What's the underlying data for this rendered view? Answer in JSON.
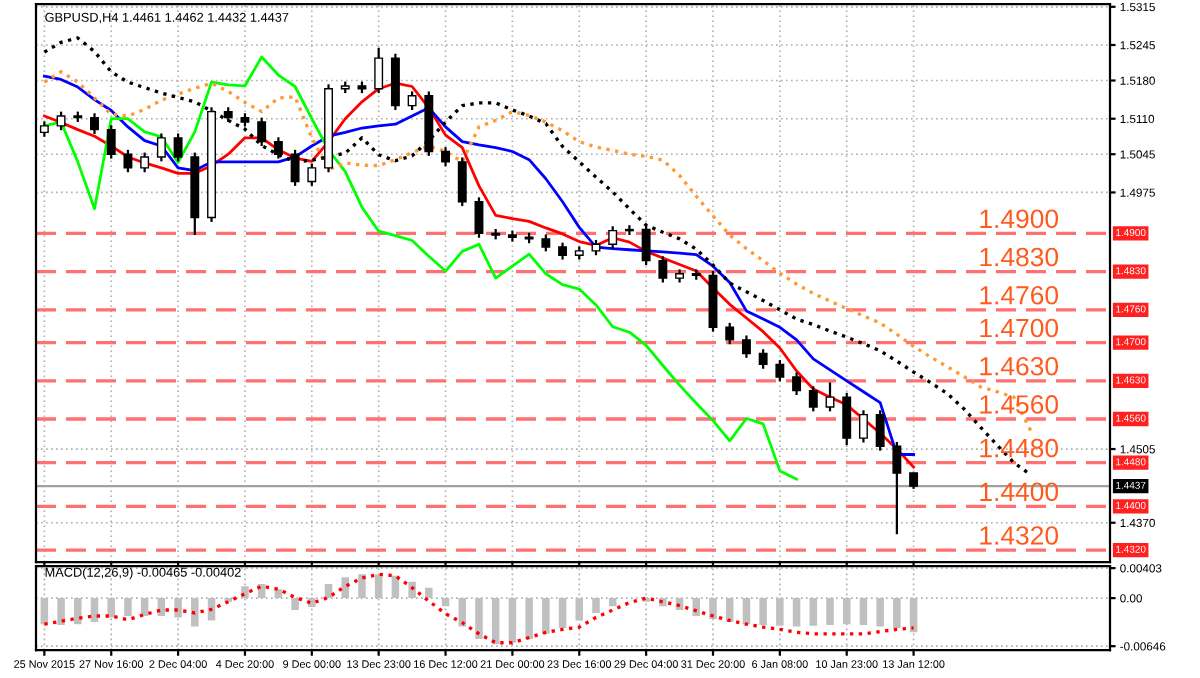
{
  "chart_data": [
    {
      "type": "line",
      "title": "GBPUSD,H4 1.4461 1.4462 1.4432 1.4437",
      "categories": [
        null,
        null,
        null,
        null,
        null,
        null,
        null,
        null,
        null,
        null,
        null,
        null,
        null,
        null,
        null,
        null,
        null,
        null,
        null,
        null,
        null,
        null,
        null,
        null,
        null,
        null,
        null,
        null,
        null,
        null,
        null,
        null,
        null,
        null,
        null,
        null,
        null,
        null,
        null,
        null,
        null,
        null,
        null,
        null,
        null,
        null,
        null,
        null,
        null,
        null,
        null,
        null,
        null,
        null,
        null,
        null,
        null,
        null,
        null,
        null,
        null,
        null,
        null,
        null
      ],
      "ylim": [
        1.4298,
        1.532
      ],
      "tick_labels": "y",
      "grid": true,
      "yticks": [
        {
          "value": 1.5315,
          "label": "1.5315"
        },
        {
          "value": 1.5245,
          "label": "1.5245"
        },
        {
          "value": 1.518,
          "label": "1.5180"
        },
        {
          "value": 1.511,
          "label": "1.5110"
        },
        {
          "value": 1.5045,
          "label": "1.5045"
        },
        {
          "value": 1.4975,
          "label": "1.4975"
        },
        {
          "value": 1.4505,
          "label": "1.4505"
        },
        {
          "value": 1.437,
          "label": "1.4370"
        }
      ],
      "series": [
        {
          "type": "candlestick",
          "color": "#000000",
          "ohlc": [
            [
              1.5085,
              1.5105,
              1.5077,
              1.5097
            ],
            [
              1.5097,
              1.5123,
              1.5089,
              1.5115
            ],
            [
              1.5115,
              1.5123,
              1.5104,
              1.5112
            ],
            [
              1.5112,
              1.512,
              1.5082,
              1.509
            ],
            [
              1.509,
              1.5098,
              1.5037,
              1.5045
            ],
            [
              1.5045,
              1.5053,
              1.5012,
              1.502
            ],
            [
              1.502,
              1.5048,
              1.5012,
              1.504
            ],
            [
              1.504,
              1.5083,
              1.5032,
              1.5075
            ],
            [
              1.5075,
              1.5083,
              1.5032,
              1.504
            ],
            [
              1.504,
              1.5048,
              1.4897,
              1.4929
            ],
            [
              1.4929,
              1.5131,
              1.4921,
              1.5123
            ],
            [
              1.5123,
              1.5131,
              1.5104,
              1.5112
            ],
            [
              1.5112,
              1.512,
              1.5096,
              1.5104
            ],
            [
              1.5104,
              1.5112,
              1.506,
              1.5068
            ],
            [
              1.5068,
              1.5076,
              1.5037,
              1.5045
            ],
            [
              1.5045,
              1.5053,
              1.4987,
              1.4995
            ],
            [
              1.4995,
              1.5028,
              1.4987,
              1.502
            ],
            [
              1.502,
              1.5173,
              1.5012,
              1.5165
            ],
            [
              1.5165,
              1.5178,
              1.5157,
              1.517
            ],
            [
              1.517,
              1.5178,
              1.5157,
              1.5165
            ],
            [
              1.5165,
              1.524,
              1.5157,
              1.5221
            ],
            [
              1.5221,
              1.5229,
              1.5126,
              1.5134
            ],
            [
              1.5134,
              1.516,
              1.5126,
              1.5152
            ],
            [
              1.5152,
              1.516,
              1.5042,
              1.505
            ],
            [
              1.505,
              1.5058,
              1.5023,
              1.5031
            ],
            [
              1.5031,
              1.5039,
              1.495,
              1.4958
            ],
            [
              1.4958,
              1.4966,
              1.4892,
              1.49
            ],
            [
              1.49,
              1.4908,
              1.4889,
              1.4897
            ],
            [
              1.4897,
              1.4905,
              1.4885,
              1.4893
            ],
            [
              1.4893,
              1.4901,
              1.4882,
              1.489
            ],
            [
              1.489,
              1.4898,
              1.4867,
              1.4875
            ],
            [
              1.4875,
              1.4883,
              1.4852,
              1.486
            ],
            [
              1.486,
              1.4876,
              1.4852,
              1.4868
            ],
            [
              1.4868,
              1.4888,
              1.486,
              1.488
            ],
            [
              1.488,
              1.4913,
              1.4872,
              1.4905
            ],
            [
              1.4905,
              1.4915,
              1.4897,
              1.4907
            ],
            [
              1.4907,
              1.4915,
              1.4842,
              1.485
            ],
            [
              1.485,
              1.4858,
              1.481,
              1.4818
            ],
            [
              1.4818,
              1.4834,
              1.481,
              1.4826
            ],
            [
              1.4826,
              1.4834,
              1.4815,
              1.4823
            ],
            [
              1.4823,
              1.4831,
              1.472,
              1.4728
            ],
            [
              1.4728,
              1.4736,
              1.4697,
              1.4705
            ],
            [
              1.4705,
              1.4713,
              1.4672,
              1.468
            ],
            [
              1.468,
              1.4688,
              1.4652,
              1.466
            ],
            [
              1.466,
              1.4668,
              1.4629,
              1.4637
            ],
            [
              1.4637,
              1.4645,
              1.4604,
              1.4612
            ],
            [
              1.4612,
              1.462,
              1.4574,
              1.4582
            ],
            [
              1.4582,
              1.4627,
              1.4574,
              1.46
            ],
            [
              1.46,
              1.4608,
              1.4512,
              1.4525
            ],
            [
              1.4525,
              1.4576,
              1.4517,
              1.4568
            ],
            [
              1.4568,
              1.4576,
              1.4502,
              1.451
            ],
            [
              1.451,
              1.4518,
              1.4349,
              1.4461
            ],
            [
              1.4461,
              1.4462,
              1.4432,
              1.4437
            ],
            null,
            null,
            null,
            null,
            null,
            null,
            null,
            null,
            null,
            null,
            null
          ]
        },
        {
          "color": "#ff0000",
          "line_style": "solid",
          "values": [
            1.5115,
            1.5103,
            1.509,
            1.5078,
            1.506,
            1.504,
            1.5029,
            1.502,
            1.501,
            1.501,
            1.5024,
            1.5045,
            1.5075,
            1.5075,
            1.5053,
            1.5038,
            1.5032,
            1.5068,
            1.511,
            1.5141,
            1.5165,
            1.5175,
            1.5169,
            1.513,
            1.508,
            1.5057,
            1.4987,
            1.4933,
            1.4927,
            1.4922,
            1.491,
            1.4899,
            1.4885,
            1.4878,
            1.4892,
            1.4884,
            1.4867,
            1.4855,
            1.4843,
            1.4831,
            1.48,
            1.477,
            1.4745,
            1.472,
            1.469,
            1.4648,
            1.4615,
            1.46,
            1.4586,
            1.456,
            1.4534,
            1.4505,
            1.4472,
            null,
            null,
            null,
            null,
            null,
            null,
            null,
            null,
            null,
            null,
            null
          ]
        },
        {
          "color": "#0000ff",
          "line_style": "solid",
          "values": [
            1.5188,
            1.5182,
            1.5168,
            1.5145,
            1.5125,
            1.5095,
            1.507,
            1.506,
            1.502,
            1.5015,
            1.5031,
            1.5031,
            1.5031,
            1.5031,
            1.5031,
            1.504,
            1.506,
            1.5078,
            1.5085,
            1.5093,
            1.5097,
            1.51,
            1.5115,
            1.513,
            1.5095,
            1.5068,
            1.5062,
            1.5057,
            1.505,
            1.5035,
            1.5,
            1.4958,
            1.4911,
            1.4875,
            1.4872,
            1.487,
            1.4868,
            1.4866,
            1.4864,
            1.4861,
            1.484,
            1.481,
            1.4758,
            1.4743,
            1.4728,
            1.4705,
            1.467,
            1.465,
            1.463,
            1.461,
            1.459,
            1.4495,
            1.4495,
            null,
            null,
            null,
            null,
            null,
            null,
            null,
            null,
            null,
            null,
            null
          ]
        },
        {
          "color": "#00ff00",
          "line_style": "solid",
          "values": [
            1.5097,
            1.5104,
            1.5031,
            1.4945,
            1.511,
            1.511,
            1.5086,
            1.5077,
            1.503,
            1.5086,
            1.5177,
            1.5172,
            1.517,
            1.5223,
            1.519,
            1.5169,
            1.511,
            1.5053,
            1.5013,
            1.4948,
            1.4904,
            1.4896,
            1.4887,
            1.4858,
            1.4831,
            1.4867,
            1.488,
            1.4818,
            1.484,
            1.4862,
            1.4826,
            1.4806,
            1.4798,
            1.4769,
            1.4729,
            1.4719,
            1.4695,
            1.4658,
            1.4622,
            1.4589,
            1.4557,
            1.452,
            1.4561,
            1.4551,
            1.4465,
            1.445,
            null,
            null,
            null,
            null,
            null,
            null,
            null,
            null,
            null,
            null,
            null,
            null,
            null,
            null,
            null,
            null,
            null,
            null
          ]
        },
        {
          "color": "#ff9933",
          "line_style": "dotted",
          "values": [
            1.5177,
            1.5196,
            1.5177,
            1.5148,
            1.5118,
            1.5115,
            1.5127,
            1.5144,
            1.5155,
            1.5166,
            1.5175,
            1.516,
            1.514,
            1.5123,
            1.5148,
            1.515,
            1.5075,
            1.5017,
            1.5029,
            1.5025,
            1.5024,
            1.5035,
            1.5048,
            1.506,
            1.505,
            1.5031,
            1.5095,
            1.5107,
            1.5123,
            1.5116,
            1.5104,
            1.5088,
            1.5068,
            1.5058,
            1.5052,
            1.5045,
            1.5041,
            1.5034,
            1.5006,
            1.4968,
            1.4932,
            1.4897,
            1.4872,
            1.485,
            1.4827,
            1.4807,
            1.479,
            1.4776,
            1.4762,
            1.4749,
            1.4736,
            1.4715,
            1.4693,
            1.4674,
            1.4656,
            1.4638,
            1.4619,
            1.461,
            1.46,
            1.4539,
            null,
            null,
            null,
            null
          ]
        },
        {
          "color": "#000000",
          "line_style": "dotted",
          "values": [
            1.5232,
            1.525,
            1.5258,
            1.5233,
            1.5196,
            1.5177,
            1.5167,
            1.5157,
            1.5149,
            1.5141,
            1.5124,
            1.5107,
            1.5091,
            1.5061,
            1.5044,
            1.5031,
            1.5034,
            1.504,
            1.5047,
            1.5075,
            1.5044,
            1.5033,
            1.5042,
            1.507,
            1.5104,
            1.5134,
            1.5139,
            1.5139,
            1.5126,
            1.5115,
            1.5101,
            1.5059,
            1.5031,
            1.5003,
            1.4976,
            1.4945,
            1.4915,
            1.4902,
            1.489,
            1.4871,
            1.4842,
            1.4809,
            1.4793,
            1.4777,
            1.476,
            1.4743,
            1.4733,
            1.4721,
            1.471,
            1.4698,
            1.4685,
            1.4666,
            1.4646,
            1.4627,
            1.4607,
            1.4579,
            1.4545,
            1.4512,
            1.448,
            1.4458,
            null,
            null,
            null,
            null
          ]
        }
      ],
      "ref_lines": [
        {
          "axis": "y",
          "value": 1.49,
          "label": "1.4900",
          "color": "#ff7070",
          "line_style": "dashed"
        },
        {
          "axis": "y",
          "value": 1.483,
          "label": "1.4830",
          "color": "#ff7070",
          "line_style": "dashed"
        },
        {
          "axis": "y",
          "value": 1.476,
          "label": "1.4760",
          "color": "#ff7070",
          "line_style": "dashed"
        },
        {
          "axis": "y",
          "value": 1.47,
          "label": "1.4700",
          "color": "#ff7070",
          "line_style": "dashed"
        },
        {
          "axis": "y",
          "value": 1.463,
          "label": "1.4630",
          "color": "#ff7070",
          "line_style": "dashed"
        },
        {
          "axis": "y",
          "value": 1.456,
          "label": "1.4560",
          "color": "#ff7070",
          "line_style": "dashed"
        },
        {
          "axis": "y",
          "value": 1.448,
          "label": "1.4480",
          "color": "#ff7070",
          "line_style": "dashed"
        },
        {
          "axis": "y",
          "value": 1.44,
          "label": "1.4400",
          "color": "#ff7070",
          "line_style": "dashed"
        },
        {
          "axis": "y",
          "value": 1.432,
          "label": "1.4320",
          "color": "#ff7070",
          "line_style": "dashed"
        },
        {
          "axis": "y",
          "value": 1.4437,
          "label": "1.4437",
          "color": "#a0a0a0",
          "line_style": "solid"
        }
      ]
    },
    {
      "type": "bar",
      "title": "MACD(12,26,9) -0.00465 -0.00402",
      "categories": [
        "25 Nov 2015",
        null,
        null,
        null,
        "27 Nov 16:00",
        null,
        null,
        null,
        "2 Dec 04:00",
        null,
        null,
        null,
        "4 Dec 20:00",
        null,
        null,
        null,
        "9 Dec 00:00",
        null,
        null,
        null,
        "13 Dec 23:00",
        null,
        null,
        null,
        "16 Dec 12:00",
        null,
        null,
        null,
        "21 Dec 00:00",
        null,
        null,
        null,
        "23 Dec 16:00",
        null,
        null,
        null,
        "29 Dec 04:00",
        null,
        null,
        null,
        "31 Dec 20:00",
        null,
        null,
        null,
        "6 Jan 08:00",
        null,
        null,
        null,
        "10 Jan 23:00",
        null,
        null,
        null,
        "13 Jan 12:00",
        null,
        null,
        null,
        null,
        null,
        null,
        null,
        null,
        null,
        null,
        null
      ],
      "ylim": [
        -0.007,
        0.0043
      ],
      "grid": true,
      "yticks": [
        {
          "value": 0.00403,
          "label": "0.00403"
        },
        {
          "value": 0,
          "label": "0.00"
        },
        {
          "value": -0.00646,
          "label": "-0.00646"
        }
      ],
      "series": [
        {
          "color": "#c0c0c0",
          "values": [
            -0.0035,
            -0.0036,
            -0.0035,
            -0.0032,
            -0.0026,
            -0.0024,
            -0.0024,
            -0.0024,
            -0.0026,
            -0.0038,
            -0.003,
            -0.0005,
            0.0016,
            0.0019,
            0.0012,
            -0.0016,
            -0.0012,
            0.0019,
            0.0028,
            0.0032,
            0.0032,
            0.003,
            0.0022,
            0.0014,
            -0.0011,
            -0.0038,
            -0.0055,
            -0.0062,
            -0.006,
            -0.0055,
            -0.0048,
            -0.004,
            -0.003,
            -0.002,
            -0.0011,
            null,
            -0.0005,
            -0.0011,
            -0.0016,
            -0.0024,
            -0.0028,
            -0.0032,
            -0.0035,
            -0.0036,
            -0.0037,
            -0.0038,
            -0.0037,
            -0.0036,
            -0.0035,
            -0.0036,
            -0.0038,
            -0.004,
            -0.0046,
            null,
            null,
            null,
            null,
            null,
            null,
            null,
            null,
            null,
            null,
            null
          ]
        },
        {
          "type": "line",
          "color": "#ff0000",
          "line_style": "dotted",
          "values": [
            -0.0035,
            -0.0031,
            -0.0027,
            -0.0024,
            -0.0024,
            -0.0029,
            -0.0022,
            -0.0016,
            -0.0016,
            -0.002,
            -0.0015,
            -0.0005,
            0.0006,
            0.0016,
            0.0012,
            0.0001,
            -0.0007,
            0.0001,
            0.0016,
            0.0027,
            0.0032,
            0.003,
            0.0014,
            -0.0004,
            -0.0021,
            -0.0033,
            -0.0048,
            -0.006,
            -0.006,
            -0.0053,
            -0.0046,
            -0.0042,
            -0.0039,
            -0.0026,
            -0.0016,
            -0.0006,
            0.0,
            -0.0005,
            -0.001,
            -0.0017,
            -0.0024,
            -0.003,
            -0.0035,
            -0.0039,
            -0.0042,
            -0.0046,
            -0.0048,
            -0.0048,
            -0.0048,
            -0.0048,
            -0.0045,
            -0.0042,
            -0.004,
            null,
            null,
            null,
            null,
            null,
            null,
            null,
            null,
            null,
            null,
            null
          ]
        }
      ]
    }
  ]
}
